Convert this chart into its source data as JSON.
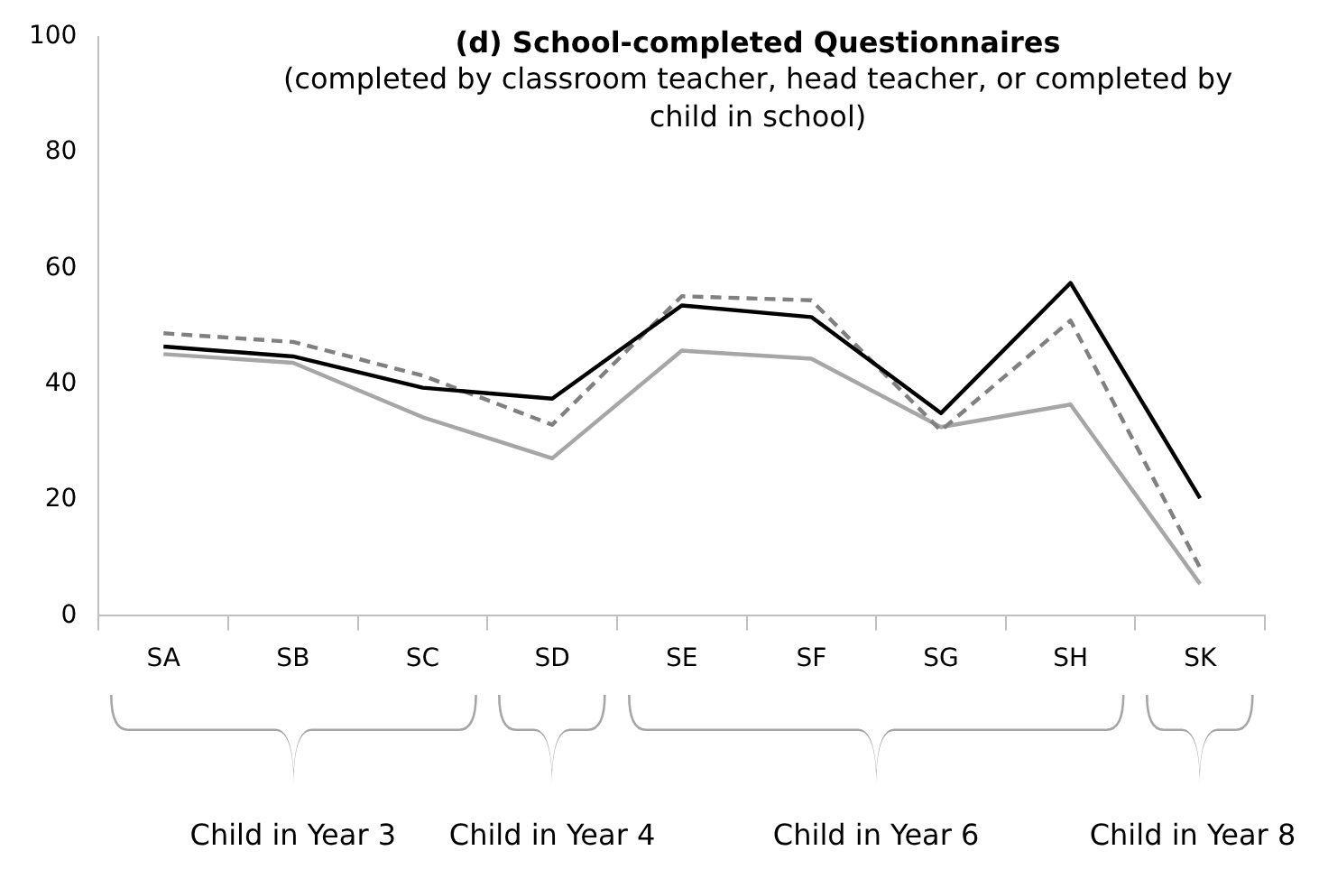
{
  "chart_data": {
    "type": "line",
    "title": "(d) School-completed Questionnaires",
    "subtitle": "(completed by classroom teacher, head teacher, or completed by child in school)",
    "categories": [
      "SA",
      "SB",
      "SC",
      "SD",
      "SE",
      "SF",
      "SG",
      "SH",
      "SK"
    ],
    "series": [
      {
        "color": "#000000",
        "line_style": "solid",
        "values": [
          46.5,
          44.8,
          39.4,
          37.5,
          53.6,
          51.6,
          35,
          57.5,
          20.3
        ]
      },
      {
        "color": "#808080",
        "line_style": "dashed",
        "values": [
          48.8,
          47.3,
          41.5,
          33,
          55.2,
          54.5,
          32,
          51,
          8.3
        ]
      },
      {
        "color": "#a6a6a6",
        "line_style": "solid",
        "values": [
          45.2,
          43.7,
          34.3,
          27.2,
          45.8,
          44.4,
          32.6,
          36.5,
          5.5
        ]
      }
    ],
    "ylim": [
      0,
      100
    ],
    "yticks": [
      0,
      20,
      40,
      60,
      80,
      100
    ],
    "grid": false,
    "legend": false,
    "marker": "none",
    "annotations": [
      "Child in Year 3",
      "Child in Year 4",
      "Child in Year 6",
      "Child in Year 8"
    ]
  }
}
